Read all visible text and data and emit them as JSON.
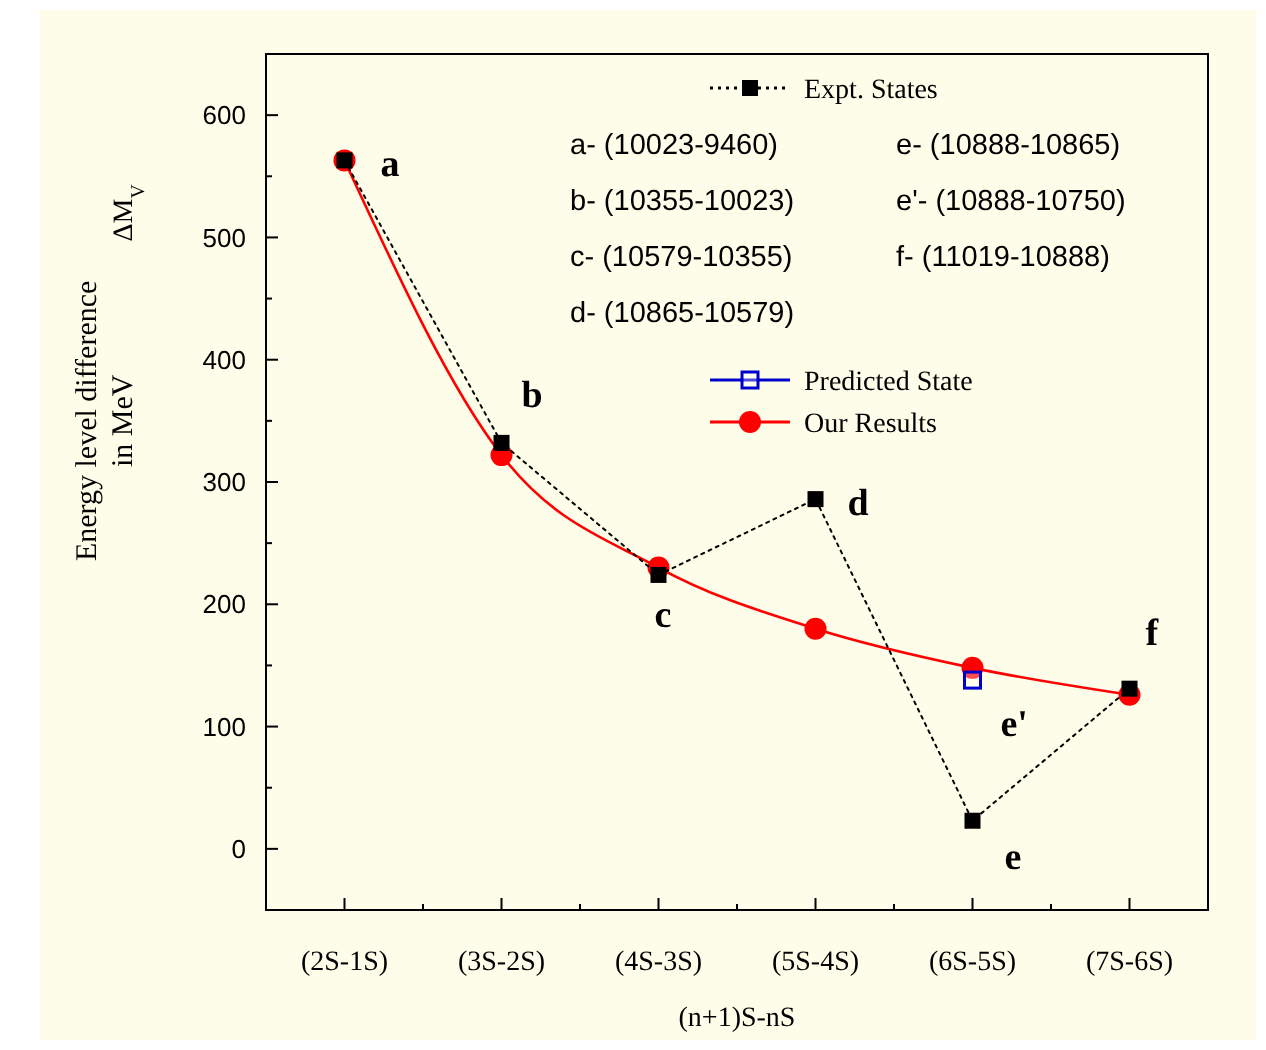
{
  "chart_data": {
    "type": "line",
    "xlabel": "(n+1)S-nS",
    "ylabel": "Energy level difference in MeV",
    "categories": [
      "(2S-1S)",
      "(3S-2S)",
      "(4S-3S)",
      "(5S-4S)",
      "(6S-5S)",
      "(7S-6S)"
    ],
    "ylim": [
      -50,
      650
    ],
    "yticks": [
      0,
      100,
      200,
      300,
      400,
      500,
      600
    ],
    "legend": "top right",
    "grid": false,
    "series": [
      {
        "name": "Expt. States",
        "color": "#000000",
        "marker": "square",
        "line_style": "dotted",
        "values": [
          563,
          332,
          224,
          286,
          23,
          131
        ]
      },
      {
        "name": "Predicted State",
        "color": "#0000cc",
        "marker": "square",
        "line_style": "solid",
        "values": [
          null,
          null,
          null,
          null,
          138,
          null
        ]
      },
      {
        "name": "Our Results",
        "color": "#ff0000",
        "marker": "circle",
        "line_style": "solid",
        "values": [
          563,
          322,
          230,
          180,
          148,
          126
        ]
      }
    ],
    "annotations": [
      "ΔM$_{V}$",
      "a- (10023-9460)",
      "b- (10355-10023)",
      "c- (10579-10355)",
      "d- (10865-10579)",
      "e- (10888-10865)",
      "e'- (10888-10750)",
      "f- (11019-10888)",
      {
        "text": "a",
        "x": "(2S-1S)",
        "y": 563
      },
      {
        "text": "b",
        "x": "(3S-2S)",
        "y": 332
      },
      {
        "text": "c",
        "x": "(4S-3S)",
        "y": 224
      },
      {
        "text": "d",
        "x": "(5S-4S)",
        "y": 286
      },
      {
        "text": "e",
        "x": "(6S-5S)",
        "y": 23
      },
      {
        "text": "e'",
        "x": "(6S-5S)",
        "y": 138
      },
      {
        "text": "f",
        "x": "(7S-6S)",
        "y": 131
      }
    ]
  }
}
